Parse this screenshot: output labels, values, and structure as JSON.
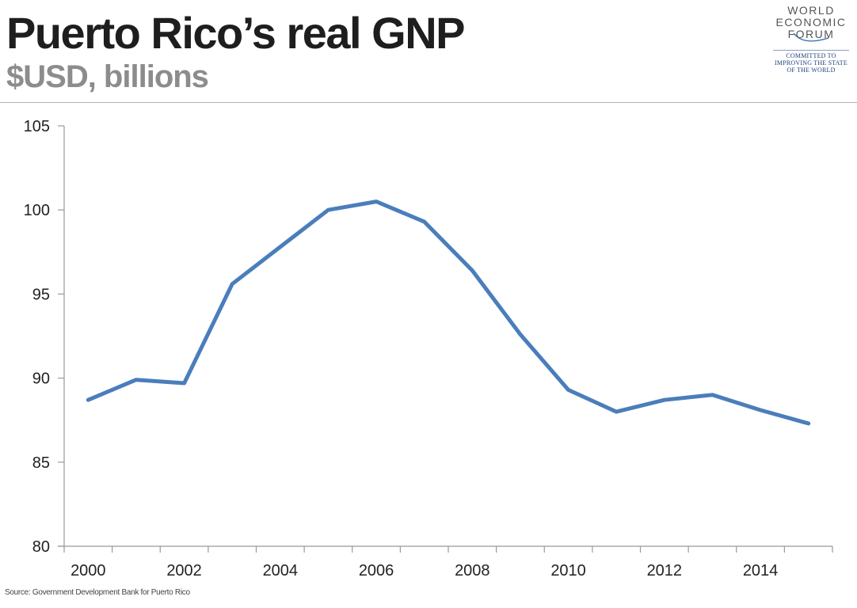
{
  "header": {
    "title": "Puerto Rico’s real GNP",
    "subtitle": "$USD, billions"
  },
  "logo": {
    "lines": [
      "WORLD",
      "ECONOMIC",
      "FORUM"
    ],
    "tagline": [
      "COMMITTED TO",
      "IMPROVING THE STATE",
      "OF THE WORLD"
    ]
  },
  "footer": {
    "source": "Source: Government Development Bank for Puerto Rico"
  },
  "colors": {
    "line": "#4a7ebb",
    "axis": "#9a9a9a",
    "title": "#1e1e1e",
    "subtitle": "#8c8c8c"
  },
  "chart_data": {
    "type": "line",
    "title": "Puerto Rico’s real GNP",
    "subtitle": "$USD, billions",
    "xlabel": "",
    "ylabel": "",
    "x": [
      2000,
      2001,
      2002,
      2003,
      2004,
      2005,
      2006,
      2007,
      2008,
      2009,
      2010,
      2011,
      2012,
      2013,
      2014,
      2015
    ],
    "series": [
      {
        "name": "Real GNP",
        "values": [
          88.7,
          89.9,
          89.7,
          95.6,
          97.8,
          100.0,
          100.5,
          99.3,
          96.4,
          92.6,
          89.3,
          88.0,
          88.7,
          89.0,
          88.1,
          87.3
        ]
      }
    ],
    "ylim": [
      80,
      105
    ],
    "yticks": [
      80,
      85,
      90,
      95,
      100,
      105
    ],
    "xtick_labels": [
      "2000",
      "2002",
      "2004",
      "2006",
      "2008",
      "2010",
      "2012",
      "2014"
    ],
    "grid": false,
    "legend": "none",
    "source": "Source: Government Development Bank for Puerto Rico"
  }
}
